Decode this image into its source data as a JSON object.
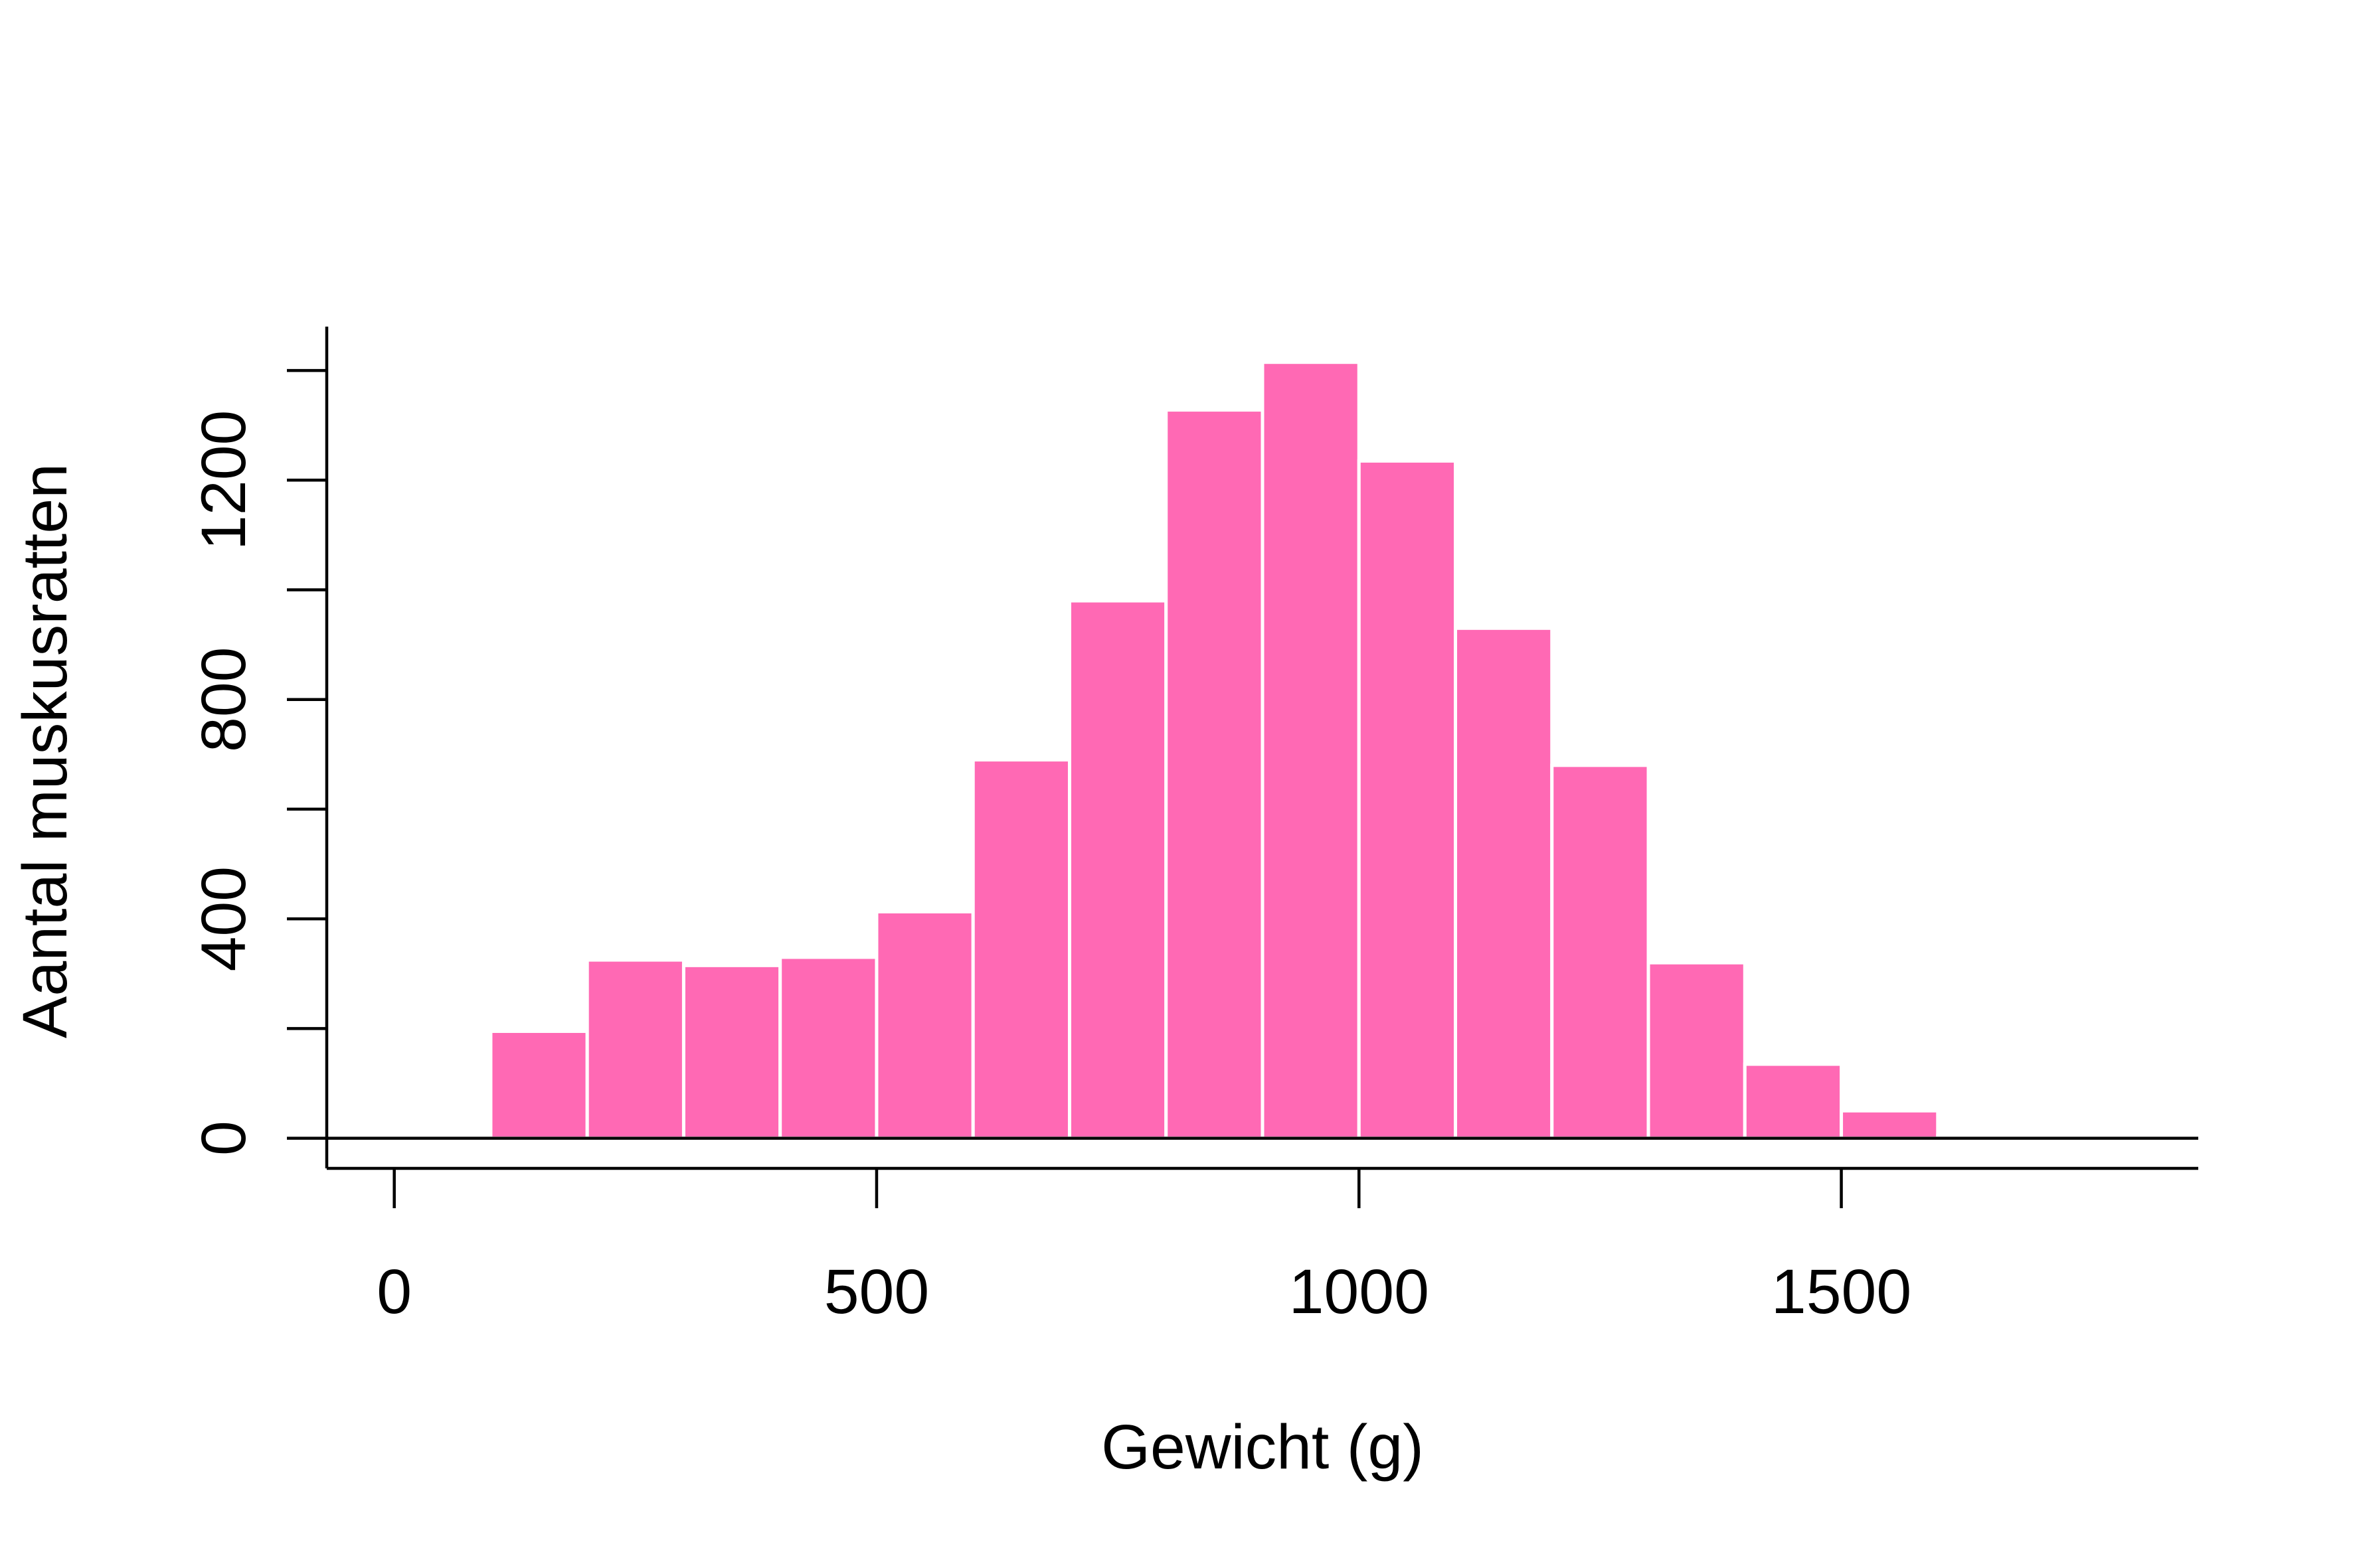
{
  "chart_data": {
    "type": "bar",
    "subtype": "histogram",
    "title": "",
    "xlabel": "Gewicht (g)",
    "ylabel": "Aantal muskusratten",
    "bin_width": 100,
    "bins": [
      {
        "from": 0,
        "to": 100,
        "count": 5
      },
      {
        "from": 100,
        "to": 200,
        "count": 195
      },
      {
        "from": 200,
        "to": 300,
        "count": 325
      },
      {
        "from": 300,
        "to": 400,
        "count": 315
      },
      {
        "from": 400,
        "to": 500,
        "count": 330
      },
      {
        "from": 500,
        "to": 600,
        "count": 413
      },
      {
        "from": 600,
        "to": 700,
        "count": 690
      },
      {
        "from": 700,
        "to": 800,
        "count": 980
      },
      {
        "from": 800,
        "to": 900,
        "count": 1328
      },
      {
        "from": 900,
        "to": 1000,
        "count": 1415
      },
      {
        "from": 1000,
        "to": 1100,
        "count": 1235
      },
      {
        "from": 1100,
        "to": 1200,
        "count": 930
      },
      {
        "from": 1200,
        "to": 1300,
        "count": 680
      },
      {
        "from": 1300,
        "to": 1400,
        "count": 320
      },
      {
        "from": 1400,
        "to": 1500,
        "count": 135
      },
      {
        "from": 1500,
        "to": 1600,
        "count": 50
      },
      {
        "from": 1600,
        "to": 1700,
        "count": 5
      }
    ],
    "xlim": [
      -70,
      1870
    ],
    "ylim": [
      -55,
      1480
    ],
    "x_ticks": [
      0,
      500,
      1000,
      1500
    ],
    "x_tick_labels": [
      "0",
      "500",
      "1000",
      "1500"
    ],
    "y_ticks": [
      0,
      200,
      400,
      600,
      800,
      1000,
      1200,
      1400
    ],
    "y_tick_labels": [
      "0",
      "",
      "400",
      "",
      "800",
      "",
      "1200",
      ""
    ],
    "grid": false,
    "legend": "none",
    "colors": {
      "bar_fill": "#FF69B4",
      "bar_border": "#FFFFFF",
      "axis": "#000000",
      "background": "#FFFFFF"
    }
  }
}
